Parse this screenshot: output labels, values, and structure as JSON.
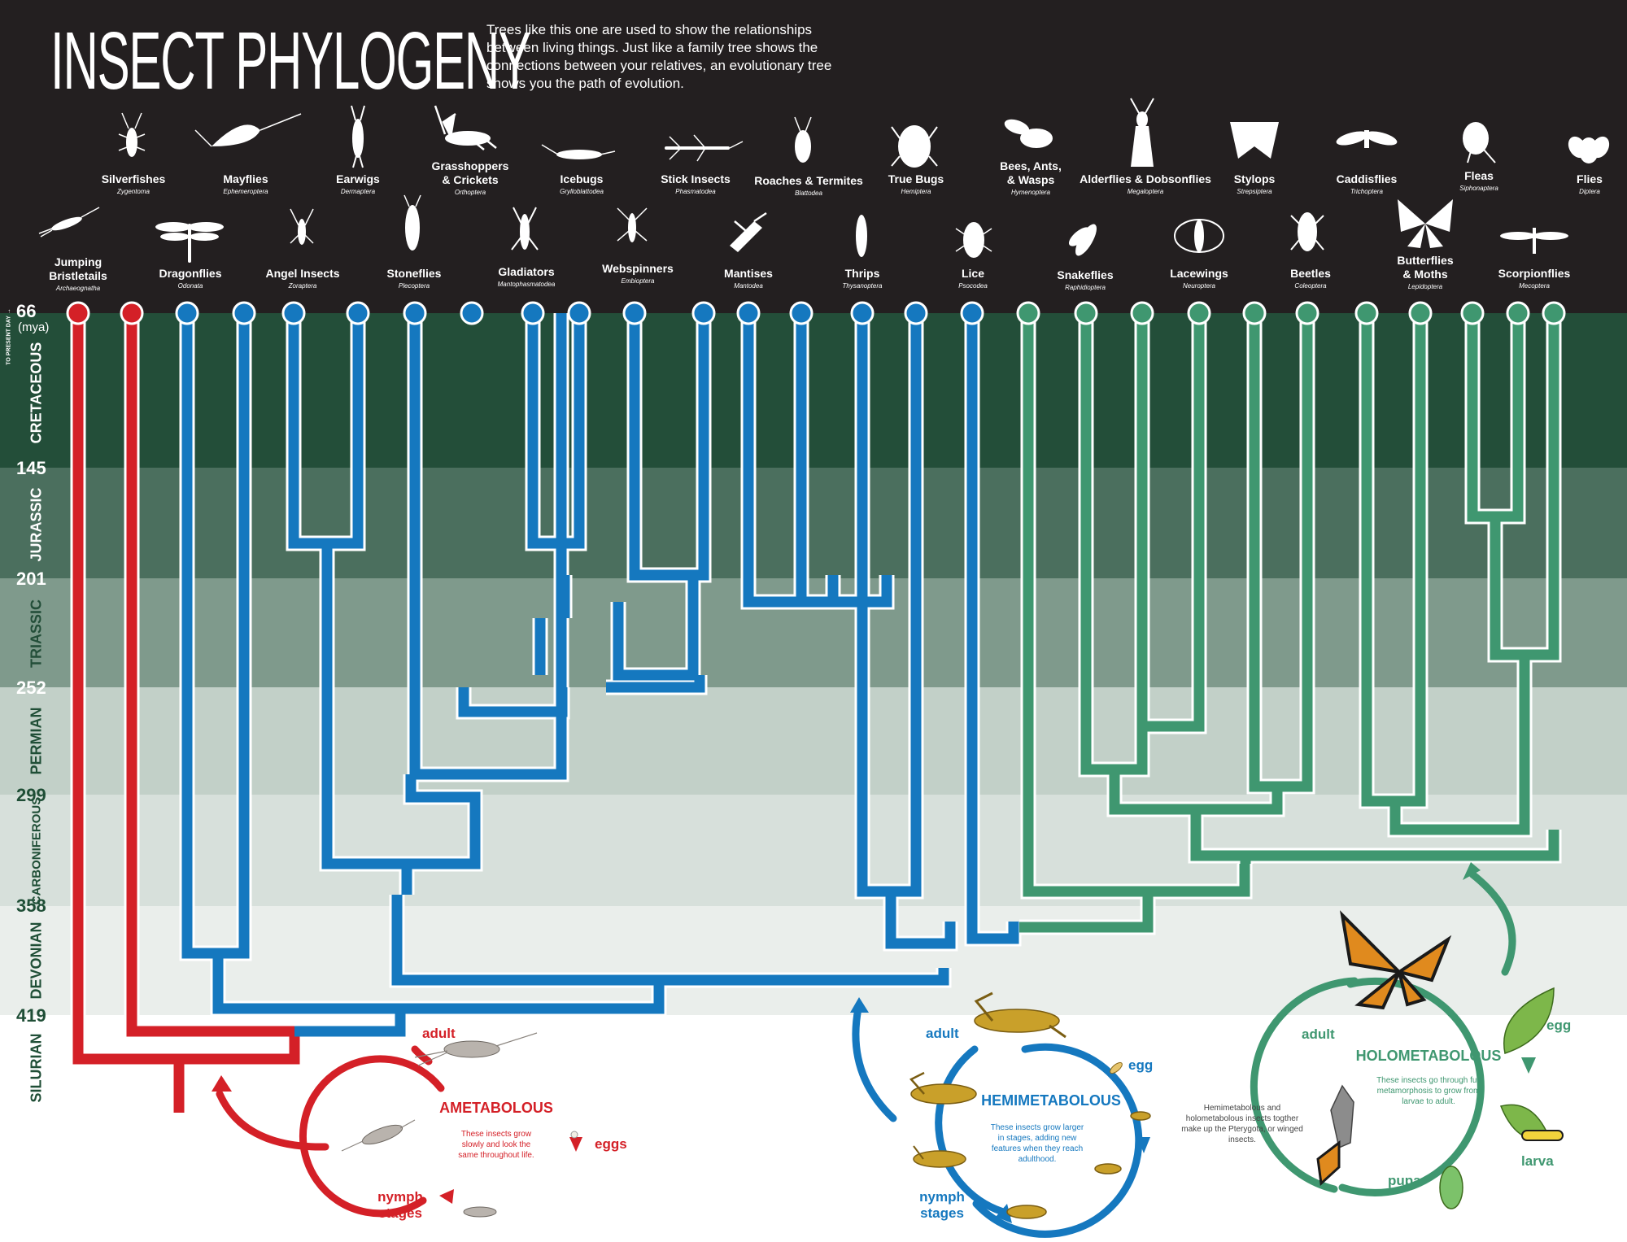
{
  "title": "INSECT PHYLOGENY",
  "intro": "Trees like this one are used to show the relationships between living things. Just like a family tree shows the connections between your relatives, an evolutionary tree shows you the path of evolution.",
  "time_axis": {
    "present_label": "TO PRESENT DAY",
    "top_unit": "(mya)",
    "boundaries": [
      "66",
      "145",
      "201",
      "252",
      "299",
      "358",
      "419"
    ],
    "eras": [
      "CRETACEOUS",
      "JURASSIC",
      "TRIASSIC",
      "PERMIAN",
      "CARBONIFEROUS",
      "DEVONIAN",
      "SILURIAN"
    ]
  },
  "taxa": [
    {
      "name": "Jumping Bristletails",
      "latin": "Archaeognatha",
      "group": "ametabolous"
    },
    {
      "name": "Silverfishes",
      "latin": "Zygentoma",
      "group": "ametabolous"
    },
    {
      "name": "Dragonflies",
      "latin": "Odonata",
      "group": "hemimetabolous"
    },
    {
      "name": "Mayflies",
      "latin": "Ephemeroptera",
      "group": "hemimetabolous"
    },
    {
      "name": "Angel Insects",
      "latin": "Zoraptera",
      "group": "hemimetabolous"
    },
    {
      "name": "Earwigs",
      "latin": "Dermaptera",
      "group": "hemimetabolous"
    },
    {
      "name": "Stoneflies",
      "latin": "Plecoptera",
      "group": "hemimetabolous"
    },
    {
      "name": "Grasshoppers & Crickets",
      "latin": "Orthoptera",
      "group": "hemimetabolous"
    },
    {
      "name": "Gladiators",
      "latin": "Mantophasmatodea",
      "group": "hemimetabolous"
    },
    {
      "name": "Icebugs",
      "latin": "Grylloblattodea",
      "group": "hemimetabolous"
    },
    {
      "name": "Webspinners",
      "latin": "Embioptera",
      "group": "hemimetabolous"
    },
    {
      "name": "Stick Insects",
      "latin": "Phasmatodea",
      "group": "hemimetabolous"
    },
    {
      "name": "Mantises",
      "latin": "Mantodea",
      "group": "hemimetabolous"
    },
    {
      "name": "Roaches & Termites",
      "latin": "Blattodea",
      "group": "hemimetabolous"
    },
    {
      "name": "Thrips",
      "latin": "Thysanoptera",
      "group": "hemimetabolous"
    },
    {
      "name": "True Bugs",
      "latin": "Hemiptera",
      "group": "hemimetabolous"
    },
    {
      "name": "Lice",
      "latin": "Psocodea",
      "group": "hemimetabolous"
    },
    {
      "name": "Bees, Ants, & Wasps",
      "latin": "Hymenoptera",
      "group": "holometabolous"
    },
    {
      "name": "Snakeflies",
      "latin": "Raphidioptera",
      "group": "holometabolous"
    },
    {
      "name": "Alderflies & Dobsonflies",
      "latin": "Megaloptera",
      "group": "holometabolous"
    },
    {
      "name": "Lacewings",
      "latin": "Neuroptera",
      "group": "holometabolous"
    },
    {
      "name": "Stylops",
      "latin": "Strepsiptera",
      "group": "holometabolous"
    },
    {
      "name": "Beetles",
      "latin": "Coleoptera",
      "group": "holometabolous"
    },
    {
      "name": "Caddisflies",
      "latin": "Trichoptera",
      "group": "holometabolous"
    },
    {
      "name": "Butterflies & Moths",
      "latin": "Lepidoptera",
      "group": "holometabolous"
    },
    {
      "name": "Fleas",
      "latin": "Siphonaptera",
      "group": "holometabolous"
    },
    {
      "name": "Scorpionflies",
      "latin": "Mecoptera",
      "group": "holometabolous"
    },
    {
      "name": "Flies",
      "latin": "Diptera",
      "group": "holometabolous"
    }
  ],
  "colors": {
    "ametabolous": "#d42027",
    "hemimetabolous": "#1578bf",
    "holometabolous": "#3f9770",
    "header": "#231f20"
  },
  "cycles": {
    "ametabolous": {
      "title": "AMETABOLOUS",
      "description": "These insects grow slowly and look the same throughout life.",
      "stages": [
        "adult",
        "eggs",
        "nymph stages"
      ]
    },
    "hemimetabolous": {
      "title": "HEMIMETABOLOUS",
      "description": "These insects grow larger in stages, adding new features when they reach adulthood.",
      "stages": [
        "adult",
        "egg",
        "nymph stages"
      ]
    },
    "holometabolous": {
      "title": "HOLOMETABOLOUS",
      "description": "These insects go through full metamorphosis to grow from larvae to adult.",
      "stages": [
        "adult",
        "egg",
        "larva",
        "pupa"
      ]
    }
  },
  "note": "Hemimetabolous and holometabolous insects togther make up the Pterygota, or winged insects."
}
